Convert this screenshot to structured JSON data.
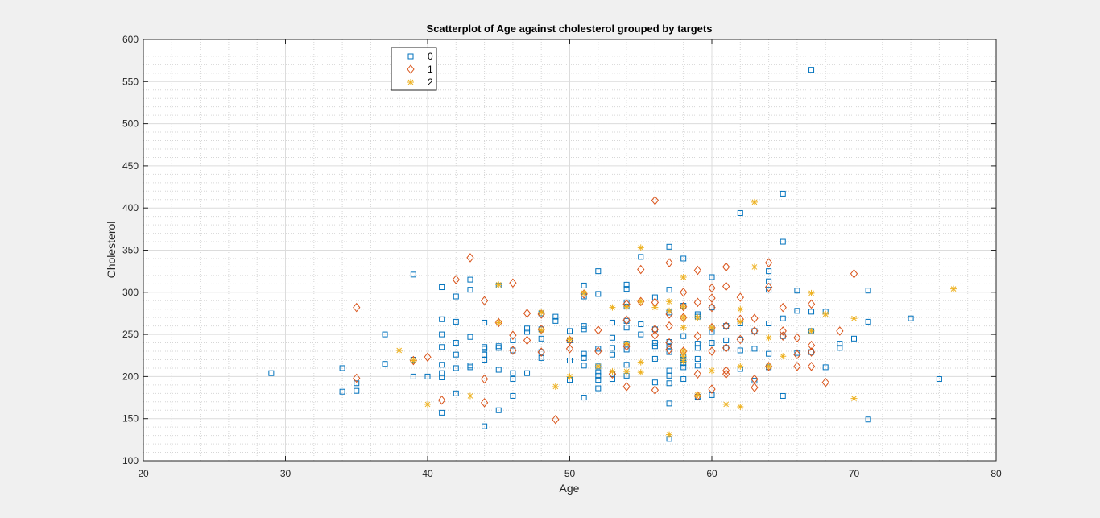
{
  "colors": {
    "target_0": "#0072BD",
    "target_1": "#D95319",
    "target_2": "#EDB120"
  },
  "chart_data": {
    "type": "scatter",
    "title": "Scatterplot of Age against cholesterol grouped by targets",
    "xlabel": "Age",
    "ylabel": "Cholesterol",
    "xlim": [
      20,
      80
    ],
    "ylim": [
      100,
      600
    ],
    "xticks": [
      "20",
      "30",
      "40",
      "50",
      "60",
      "70",
      "80"
    ],
    "yticks": [
      "100",
      "150",
      "200",
      "250",
      "300",
      "350",
      "400",
      "450",
      "500",
      "550",
      "600"
    ],
    "grid": "major and minor",
    "legend_position": "top-left",
    "series": [
      {
        "name": "0",
        "marker": "square",
        "color": "#0072BD",
        "points": [
          [
            29,
            204
          ],
          [
            34,
            182
          ],
          [
            34,
            210
          ],
          [
            35,
            183
          ],
          [
            35,
            192
          ],
          [
            37,
            215
          ],
          [
            37,
            250
          ],
          [
            39,
            220
          ],
          [
            39,
            200
          ],
          [
            39,
            321
          ],
          [
            40,
            200
          ],
          [
            41,
            306
          ],
          [
            41,
            268
          ],
          [
            41,
            250
          ],
          [
            41,
            235
          ],
          [
            41,
            214
          ],
          [
            41,
            204
          ],
          [
            41,
            199
          ],
          [
            41,
            157
          ],
          [
            42,
            295
          ],
          [
            42,
            265
          ],
          [
            42,
            240
          ],
          [
            42,
            226
          ],
          [
            42,
            210
          ],
          [
            42,
            180
          ],
          [
            43,
            315
          ],
          [
            43,
            303
          ],
          [
            43,
            247
          ],
          [
            43,
            213
          ],
          [
            43,
            211
          ],
          [
            44,
            264
          ],
          [
            44,
            235
          ],
          [
            44,
            233
          ],
          [
            44,
            226
          ],
          [
            44,
            220
          ],
          [
            44,
            141
          ],
          [
            45,
            308
          ],
          [
            45,
            234
          ],
          [
            45,
            236
          ],
          [
            45,
            208
          ],
          [
            45,
            160
          ],
          [
            46,
            243
          ],
          [
            46,
            231
          ],
          [
            46,
            204
          ],
          [
            46,
            197
          ],
          [
            46,
            177
          ],
          [
            47,
            253
          ],
          [
            47,
            257
          ],
          [
            47,
            204
          ],
          [
            48,
            275
          ],
          [
            48,
            256
          ],
          [
            48,
            245
          ],
          [
            48,
            229
          ],
          [
            48,
            222
          ],
          [
            49,
            271
          ],
          [
            49,
            266
          ],
          [
            50,
            254
          ],
          [
            50,
            243
          ],
          [
            50,
            219
          ],
          [
            50,
            196
          ],
          [
            51,
            308
          ],
          [
            51,
            295
          ],
          [
            51,
            260
          ],
          [
            51,
            256
          ],
          [
            51,
            227
          ],
          [
            51,
            222
          ],
          [
            51,
            213
          ],
          [
            51,
            175
          ],
          [
            52,
            325
          ],
          [
            52,
            298
          ],
          [
            52,
            233
          ],
          [
            52,
            212
          ],
          [
            52,
            205
          ],
          [
            52,
            201
          ],
          [
            52,
            196
          ],
          [
            52,
            186
          ],
          [
            53,
            264
          ],
          [
            53,
            246
          ],
          [
            53,
            234
          ],
          [
            53,
            226
          ],
          [
            53,
            203
          ],
          [
            53,
            197
          ],
          [
            54,
            309
          ],
          [
            54,
            304
          ],
          [
            54,
            288
          ],
          [
            54,
            283
          ],
          [
            54,
            266
          ],
          [
            54,
            258
          ],
          [
            54,
            239
          ],
          [
            54,
            232
          ],
          [
            54,
            214
          ],
          [
            54,
            201
          ],
          [
            55,
            342
          ],
          [
            55,
            262
          ],
          [
            55,
            250
          ],
          [
            56,
            294
          ],
          [
            56,
            256
          ],
          [
            56,
            240
          ],
          [
            56,
            236
          ],
          [
            56,
            221
          ],
          [
            56,
            193
          ],
          [
            57,
            354
          ],
          [
            57,
            303
          ],
          [
            57,
            276
          ],
          [
            57,
            241
          ],
          [
            57,
            236
          ],
          [
            57,
            229
          ],
          [
            57,
            207
          ],
          [
            57,
            201
          ],
          [
            57,
            192
          ],
          [
            57,
            168
          ],
          [
            57,
            126
          ],
          [
            58,
            340
          ],
          [
            58,
            284
          ],
          [
            58,
            248
          ],
          [
            58,
            224
          ],
          [
            58,
            220
          ],
          [
            58,
            216
          ],
          [
            58,
            211
          ],
          [
            58,
            197
          ],
          [
            59,
            274
          ],
          [
            59,
            271
          ],
          [
            59,
            239
          ],
          [
            59,
            234
          ],
          [
            59,
            221
          ],
          [
            59,
            213
          ],
          [
            59,
            176
          ],
          [
            60,
            318
          ],
          [
            60,
            282
          ],
          [
            60,
            258
          ],
          [
            60,
            253
          ],
          [
            60,
            240
          ],
          [
            60,
            178
          ],
          [
            61,
            260
          ],
          [
            61,
            243
          ],
          [
            61,
            234
          ],
          [
            62,
            394
          ],
          [
            62,
            263
          ],
          [
            62,
            244
          ],
          [
            62,
            231
          ],
          [
            62,
            209
          ],
          [
            63,
            254
          ],
          [
            63,
            233
          ],
          [
            63,
            195
          ],
          [
            64,
            325
          ],
          [
            64,
            313
          ],
          [
            64,
            303
          ],
          [
            64,
            263
          ],
          [
            64,
            227
          ],
          [
            64,
            211
          ],
          [
            65,
            417
          ],
          [
            65,
            360
          ],
          [
            65,
            269
          ],
          [
            65,
            248
          ],
          [
            65,
            177
          ],
          [
            66,
            302
          ],
          [
            66,
            278
          ],
          [
            66,
            228
          ],
          [
            67,
            564
          ],
          [
            67,
            277
          ],
          [
            67,
            254
          ],
          [
            67,
            229
          ],
          [
            68,
            277
          ],
          [
            68,
            211
          ],
          [
            69,
            239
          ],
          [
            69,
            234
          ],
          [
            70,
            245
          ],
          [
            71,
            302
          ],
          [
            71,
            265
          ],
          [
            71,
            149
          ],
          [
            74,
            269
          ],
          [
            76,
            197
          ]
        ]
      },
      {
        "name": "1",
        "marker": "diamond",
        "color": "#D95319",
        "points": [
          [
            35,
            282
          ],
          [
            35,
            198
          ],
          [
            39,
            219
          ],
          [
            40,
            223
          ],
          [
            41,
            172
          ],
          [
            42,
            315
          ],
          [
            43,
            341
          ],
          [
            44,
            290
          ],
          [
            44,
            197
          ],
          [
            44,
            169
          ],
          [
            45,
            264
          ],
          [
            46,
            311
          ],
          [
            46,
            249
          ],
          [
            46,
            231
          ],
          [
            47,
            275
          ],
          [
            47,
            243
          ],
          [
            48,
            274
          ],
          [
            48,
            256
          ],
          [
            48,
            229
          ],
          [
            49,
            149
          ],
          [
            50,
            243
          ],
          [
            50,
            233
          ],
          [
            51,
            298
          ],
          [
            52,
            255
          ],
          [
            52,
            230
          ],
          [
            53,
            203
          ],
          [
            54,
            286
          ],
          [
            54,
            267
          ],
          [
            54,
            236
          ],
          [
            54,
            188
          ],
          [
            55,
            327
          ],
          [
            55,
            289
          ],
          [
            56,
            409
          ],
          [
            56,
            288
          ],
          [
            56,
            256
          ],
          [
            56,
            249
          ],
          [
            56,
            184
          ],
          [
            57,
            335
          ],
          [
            57,
            274
          ],
          [
            57,
            260
          ],
          [
            57,
            240
          ],
          [
            57,
            232
          ],
          [
            58,
            300
          ],
          [
            58,
            283
          ],
          [
            58,
            270
          ],
          [
            58,
            230
          ],
          [
            59,
            326
          ],
          [
            59,
            288
          ],
          [
            59,
            248
          ],
          [
            59,
            203
          ],
          [
            59,
            177
          ],
          [
            60,
            305
          ],
          [
            60,
            293
          ],
          [
            60,
            282
          ],
          [
            60,
            258
          ],
          [
            60,
            230
          ],
          [
            60,
            185
          ],
          [
            61,
            330
          ],
          [
            61,
            307
          ],
          [
            61,
            260
          ],
          [
            61,
            234
          ],
          [
            61,
            207
          ],
          [
            61,
            203
          ],
          [
            62,
            294
          ],
          [
            62,
            268
          ],
          [
            62,
            244
          ],
          [
            63,
            269
          ],
          [
            63,
            254
          ],
          [
            63,
            187
          ],
          [
            63,
            197
          ],
          [
            64,
            335
          ],
          [
            64,
            306
          ],
          [
            64,
            212
          ],
          [
            65,
            282
          ],
          [
            65,
            254
          ],
          [
            65,
            248
          ],
          [
            66,
            246
          ],
          [
            66,
            226
          ],
          [
            66,
            212
          ],
          [
            67,
            286
          ],
          [
            67,
            237
          ],
          [
            67,
            229
          ],
          [
            67,
            212
          ],
          [
            68,
            193
          ],
          [
            69,
            254
          ],
          [
            70,
            322
          ]
        ]
      },
      {
        "name": "2",
        "marker": "asterisk",
        "color": "#EDB120",
        "points": [
          [
            38,
            231
          ],
          [
            39,
            219
          ],
          [
            40,
            167
          ],
          [
            43,
            177
          ],
          [
            45,
            309
          ],
          [
            45,
            264
          ],
          [
            48,
            276
          ],
          [
            48,
            255
          ],
          [
            49,
            188
          ],
          [
            50,
            244
          ],
          [
            50,
            200
          ],
          [
            51,
            299
          ],
          [
            52,
            212
          ],
          [
            53,
            282
          ],
          [
            53,
            206
          ],
          [
            54,
            283
          ],
          [
            54,
            239
          ],
          [
            54,
            206
          ],
          [
            55,
            353
          ],
          [
            55,
            289
          ],
          [
            55,
            217
          ],
          [
            55,
            205
          ],
          [
            56,
            282
          ],
          [
            57,
            289
          ],
          [
            57,
            278
          ],
          [
            57,
            131
          ],
          [
            58,
            318
          ],
          [
            58,
            283
          ],
          [
            58,
            270
          ],
          [
            58,
            258
          ],
          [
            58,
            230
          ],
          [
            58,
            224
          ],
          [
            58,
            218
          ],
          [
            59,
            270
          ],
          [
            59,
            178
          ],
          [
            60,
            258
          ],
          [
            60,
            207
          ],
          [
            61,
            167
          ],
          [
            62,
            280
          ],
          [
            62,
            265
          ],
          [
            62,
            212
          ],
          [
            62,
            164
          ],
          [
            63,
            407
          ],
          [
            63,
            330
          ],
          [
            64,
            246
          ],
          [
            64,
            212
          ],
          [
            65,
            224
          ],
          [
            67,
            299
          ],
          [
            67,
            254
          ],
          [
            68,
            274
          ],
          [
            70,
            269
          ],
          [
            70,
            174
          ],
          [
            77,
            304
          ]
        ]
      }
    ]
  }
}
